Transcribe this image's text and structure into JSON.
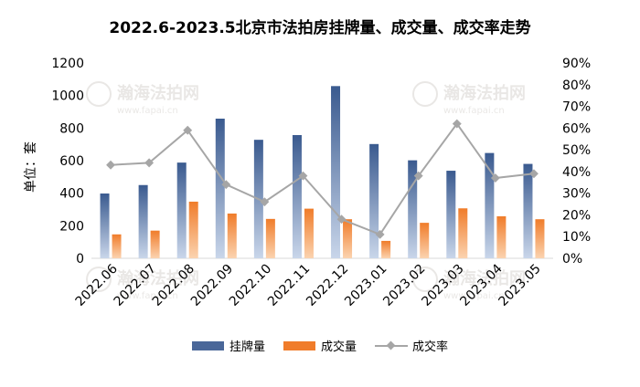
{
  "watermark": {
    "brand": "瀚海法拍网",
    "url": "www.fapai.cn"
  },
  "chart_data": {
    "type": "bar",
    "title": "2022.6-2023.5北京市法拍房挂牌量、成交量、成交率走势",
    "ylabel": "单位：套",
    "categories": [
      "2022.06",
      "2022.07",
      "2022.08",
      "2022.09",
      "2022.10",
      "2022.11",
      "2022.12",
      "2023.01",
      "2023.02",
      "2023.03",
      "2023.04",
      "2023.05"
    ],
    "ylim": [
      0,
      1200
    ],
    "yticks": [
      0,
      200,
      400,
      600,
      800,
      1000,
      1200
    ],
    "y2lim": [
      0,
      0.9
    ],
    "y2ticks": [
      "0%",
      "10%",
      "20%",
      "30%",
      "40%",
      "50%",
      "60%",
      "70%",
      "80%",
      "90%"
    ],
    "series": [
      {
        "name": "挂牌量",
        "kind": "bar",
        "color": "#4a6799",
        "values": [
          398,
          450,
          588,
          858,
          728,
          757,
          1058,
          702,
          602,
          538,
          647,
          580
        ]
      },
      {
        "name": "成交量",
        "kind": "bar",
        "color": "#f07c2a",
        "values": [
          147,
          170,
          348,
          275,
          242,
          305,
          240,
          107,
          218,
          307,
          258,
          240
        ]
      },
      {
        "name": "成交率",
        "kind": "line",
        "axis": "right",
        "color": "#a6a6a6",
        "values": [
          0.43,
          0.44,
          0.59,
          0.34,
          0.26,
          0.38,
          0.18,
          0.11,
          0.38,
          0.62,
          0.37,
          0.39
        ]
      }
    ],
    "legend": "bottom",
    "grid": false
  }
}
